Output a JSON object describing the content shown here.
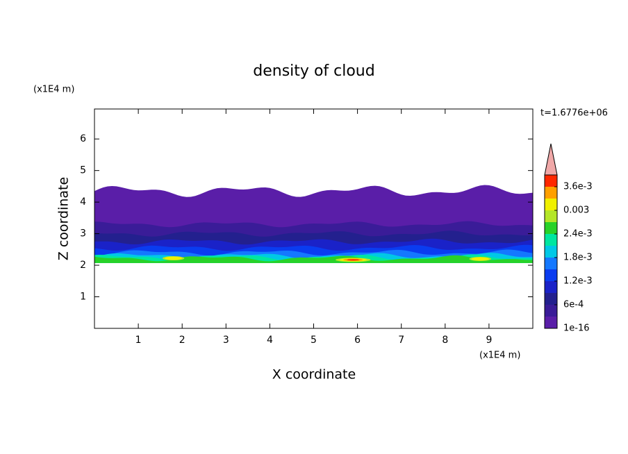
{
  "chart_data": {
    "type": "contour",
    "title": "density of cloud",
    "xlabel": "X coordinate",
    "ylabel": "Z coordinate",
    "xunit": "(x1E4 m)",
    "yunit": "(x1E4 m)",
    "time_label": "t=1.6776e+06",
    "xlim": [
      0,
      10
    ],
    "ylim": [
      0,
      6.95
    ],
    "xticks": [
      1,
      2,
      3,
      4,
      5,
      6,
      7,
      8,
      9
    ],
    "yticks": [
      1,
      2,
      3,
      4,
      5,
      6
    ],
    "levels": [
      1e-16,
      0.0003,
      0.0006,
      0.0009,
      0.0012,
      0.0015,
      0.0018,
      0.0021,
      0.0024,
      0.0027,
      0.003,
      0.0033,
      0.0036,
      0.0039
    ],
    "colors": [
      "#5a1ea8",
      "#3a1c98",
      "#23208e",
      "#1a22c8",
      "#0a3cf0",
      "#1478ff",
      "#00c8e6",
      "#00e6a0",
      "#28d228",
      "#b4e628",
      "#f0f000",
      "#ffa000",
      "#ff2800"
    ],
    "extend_color": "#f0a8a8",
    "cbar_ticks": [
      1e-16,
      {
        "value": 0.0006,
        "label": "6e-4"
      },
      {
        "value": 0.0012,
        "label": "1.2e-3"
      },
      {
        "value": 0.0018,
        "label": "1.8e-3"
      },
      {
        "value": 0.0024,
        "label": "2.4e-3"
      },
      0.003,
      {
        "value": 0.0036,
        "label": "3.6e-3"
      }
    ]
  }
}
